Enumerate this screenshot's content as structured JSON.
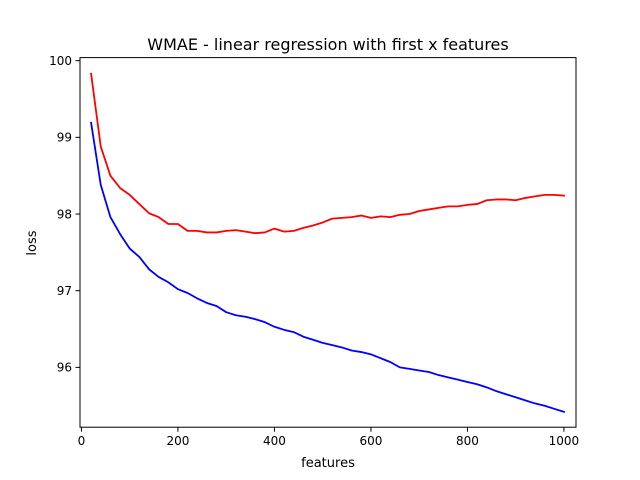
{
  "chart_data": {
    "type": "line",
    "title": "WMAE - linear regression with first x features",
    "xlabel": "features",
    "ylabel": "loss",
    "xlim": [
      -3,
      1025
    ],
    "ylim": [
      95.22,
      100.04
    ],
    "xticks": [
      0,
      200,
      400,
      600,
      800,
      1000
    ],
    "yticks": [
      96,
      97,
      98,
      99,
      100
    ],
    "grid": false,
    "legend": "none",
    "x": [
      20,
      40,
      60,
      80,
      100,
      120,
      140,
      160,
      180,
      200,
      220,
      240,
      260,
      280,
      300,
      320,
      340,
      360,
      380,
      400,
      420,
      440,
      460,
      480,
      500,
      520,
      540,
      560,
      580,
      600,
      620,
      640,
      660,
      680,
      700,
      720,
      740,
      760,
      780,
      800,
      820,
      840,
      860,
      880,
      900,
      920,
      940,
      960,
      980,
      1000
    ],
    "series": [
      {
        "color": "#ff0000",
        "values": [
          99.83,
          98.88,
          98.5,
          98.34,
          98.25,
          98.13,
          98.01,
          97.96,
          97.87,
          97.87,
          97.78,
          97.78,
          97.76,
          97.76,
          97.78,
          97.79,
          97.77,
          97.75,
          97.76,
          97.81,
          97.77,
          97.78,
          97.82,
          97.85,
          97.89,
          97.94,
          97.95,
          97.96,
          97.98,
          97.95,
          97.97,
          97.96,
          97.99,
          98.0,
          98.04,
          98.06,
          98.08,
          98.1,
          98.1,
          98.12,
          98.13,
          98.18,
          98.19,
          98.19,
          98.18,
          98.21,
          98.23,
          98.25,
          98.25,
          98.24
        ]
      },
      {
        "color": "#0000ff",
        "values": [
          99.19,
          98.38,
          97.96,
          97.74,
          97.55,
          97.44,
          97.28,
          97.18,
          97.11,
          97.02,
          96.97,
          96.9,
          96.84,
          96.8,
          96.72,
          96.68,
          96.66,
          96.63,
          96.59,
          96.53,
          96.49,
          96.46,
          96.4,
          96.36,
          96.32,
          96.29,
          96.26,
          96.22,
          96.2,
          96.17,
          96.12,
          96.07,
          96.0,
          95.98,
          95.96,
          95.94,
          95.9,
          95.87,
          95.84,
          95.81,
          95.78,
          95.74,
          95.69,
          95.65,
          95.61,
          95.57,
          95.53,
          95.5,
          95.46,
          95.42
        ]
      }
    ]
  }
}
